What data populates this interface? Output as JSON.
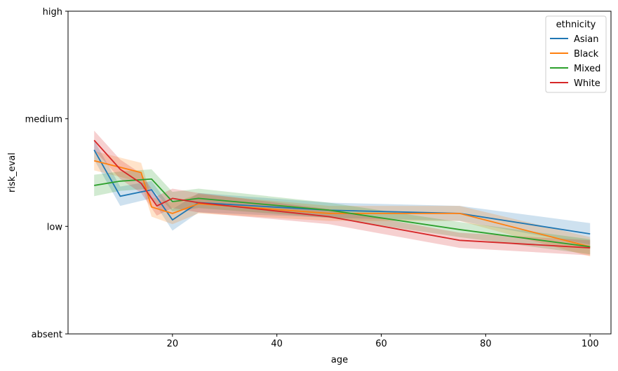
{
  "chart_data": {
    "type": "line",
    "title": "",
    "xlabel": "age",
    "ylabel": "risk_eval",
    "xlim": [
      0,
      104
    ],
    "ylim": [
      0,
      3
    ],
    "x_ticks": [
      20,
      40,
      60,
      80,
      100
    ],
    "y_ticks": [
      {
        "value": 0,
        "label": "absent"
      },
      {
        "value": 1,
        "label": "low"
      },
      {
        "value": 2,
        "label": "medium"
      },
      {
        "value": 3,
        "label": "high"
      }
    ],
    "grid": false,
    "legend": {
      "title": "ethnicity",
      "placement": "top-right"
    },
    "series": [
      {
        "name": "Asian",
        "color": "#1f77b4",
        "x": [
          5,
          10,
          16,
          20,
          25,
          50,
          75,
          100
        ],
        "y": [
          1.71,
          1.28,
          1.34,
          1.06,
          1.22,
          1.15,
          1.12,
          0.93
        ],
        "ci_low": [
          1.62,
          1.19,
          1.26,
          0.96,
          1.13,
          1.08,
          1.05,
          0.83
        ],
        "ci_high": [
          1.8,
          1.37,
          1.42,
          1.16,
          1.31,
          1.22,
          1.19,
          1.03
        ]
      },
      {
        "name": "Black",
        "color": "#ff7f0e",
        "x": [
          5,
          14,
          16,
          20,
          25,
          50,
          75,
          100
        ],
        "y": [
          1.61,
          1.5,
          1.18,
          1.12,
          1.21,
          1.12,
          1.12,
          0.81
        ],
        "ci_low": [
          1.52,
          1.41,
          1.09,
          1.02,
          1.12,
          1.05,
          1.05,
          0.72
        ],
        "ci_high": [
          1.7,
          1.59,
          1.27,
          1.22,
          1.3,
          1.19,
          1.19,
          0.9
        ]
      },
      {
        "name": "Mixed",
        "color": "#2ca02c",
        "x": [
          5,
          10,
          16,
          20,
          25,
          50,
          75,
          100
        ],
        "y": [
          1.38,
          1.42,
          1.44,
          1.23,
          1.26,
          1.15,
          0.97,
          0.81
        ],
        "ci_low": [
          1.28,
          1.33,
          1.35,
          1.14,
          1.17,
          1.08,
          0.9,
          0.74
        ],
        "ci_high": [
          1.48,
          1.51,
          1.53,
          1.32,
          1.35,
          1.22,
          1.04,
          0.88
        ]
      },
      {
        "name": "White",
        "color": "#d62728",
        "x": [
          5,
          10,
          14,
          17,
          20,
          25,
          50,
          75,
          100
        ],
        "y": [
          1.8,
          1.53,
          1.4,
          1.19,
          1.26,
          1.22,
          1.09,
          0.87,
          0.8
        ],
        "ci_low": [
          1.71,
          1.44,
          1.31,
          1.1,
          1.17,
          1.13,
          1.02,
          0.8,
          0.73
        ],
        "ci_high": [
          1.89,
          1.62,
          1.49,
          1.28,
          1.35,
          1.31,
          1.16,
          0.94,
          0.87
        ]
      }
    ]
  }
}
